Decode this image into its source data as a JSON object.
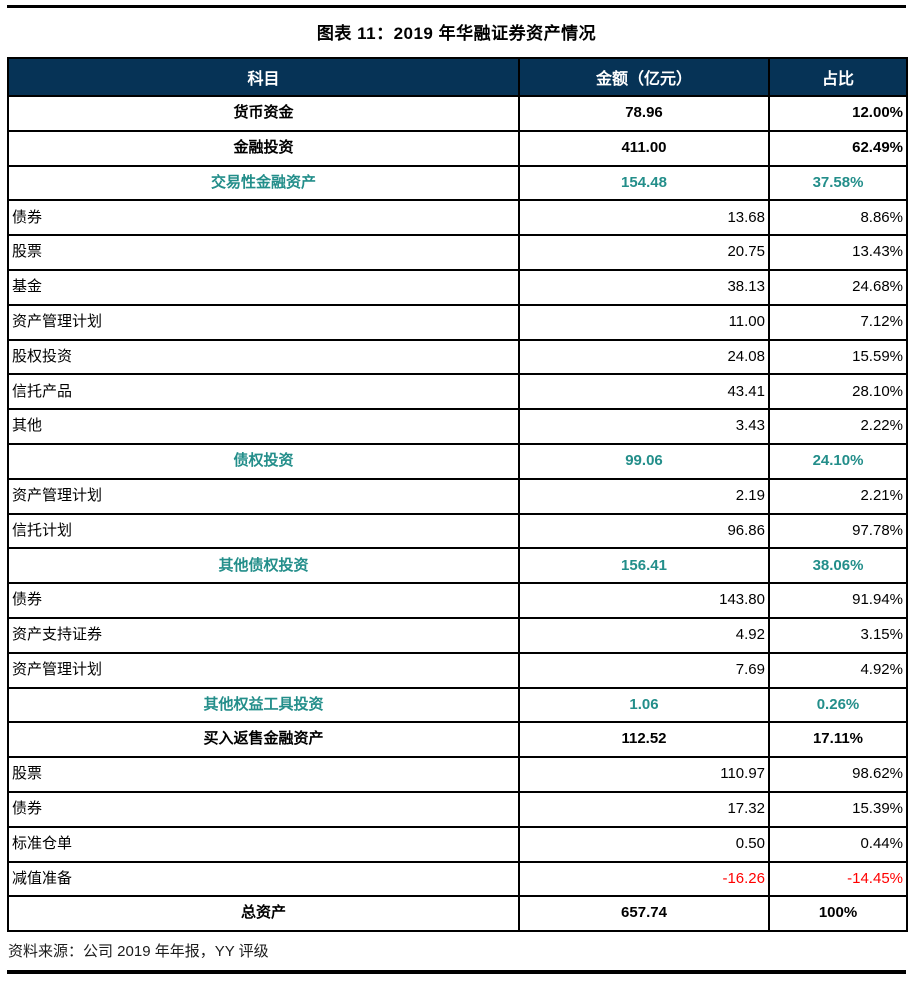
{
  "title": "图表 11：2019 年华融证券资产情况",
  "source": "资料来源：公司 2019 年年报，YY 评级",
  "colors": {
    "header_bg": "#063356",
    "header_text": "#FFFFFF",
    "teal": "#238E8A",
    "negative": "#FF0000",
    "border": "#000000"
  },
  "table": {
    "columns": [
      {
        "label": "科目"
      },
      {
        "label": "金额（亿元）"
      },
      {
        "label": "占比"
      }
    ],
    "rows": [
      {
        "subject": "货币资金",
        "amount": "78.96",
        "ratio": "12.00%",
        "style": "section",
        "amount_align": "center",
        "ratio_align": "right"
      },
      {
        "subject": "金融投资",
        "amount": "411.00",
        "ratio": "62.49%",
        "style": "section",
        "amount_align": "center",
        "ratio_align": "right"
      },
      {
        "subject": "交易性金融资产",
        "amount": "154.48",
        "ratio": "37.58%",
        "style": "section-teal",
        "amount_align": "center",
        "ratio_align": "center"
      },
      {
        "subject": "债券",
        "amount": "13.68",
        "ratio": "8.86%",
        "style": "detail"
      },
      {
        "subject": "股票",
        "amount": "20.75",
        "ratio": "13.43%",
        "style": "detail"
      },
      {
        "subject": "基金",
        "amount": "38.13",
        "ratio": "24.68%",
        "style": "detail"
      },
      {
        "subject": "资产管理计划",
        "amount": "11.00",
        "ratio": "7.12%",
        "style": "detail"
      },
      {
        "subject": "股权投资",
        "amount": "24.08",
        "ratio": "15.59%",
        "style": "detail"
      },
      {
        "subject": "信托产品",
        "amount": "43.41",
        "ratio": "28.10%",
        "style": "detail"
      },
      {
        "subject": "其他",
        "amount": "3.43",
        "ratio": "2.22%",
        "style": "detail"
      },
      {
        "subject": "债权投资",
        "amount": "99.06",
        "ratio": "24.10%",
        "style": "section-teal",
        "amount_align": "center",
        "ratio_align": "center"
      },
      {
        "subject": "资产管理计划",
        "amount": "2.19",
        "ratio": "2.21%",
        "style": "detail"
      },
      {
        "subject": "信托计划",
        "amount": "96.86",
        "ratio": "97.78%",
        "style": "detail"
      },
      {
        "subject": "其他债权投资",
        "amount": "156.41",
        "ratio": "38.06%",
        "style": "section-teal",
        "amount_align": "center",
        "ratio_align": "center"
      },
      {
        "subject": "债券",
        "amount": "143.80",
        "ratio": "91.94%",
        "style": "detail"
      },
      {
        "subject": "资产支持证券",
        "amount": "4.92",
        "ratio": "3.15%",
        "style": "detail"
      },
      {
        "subject": "资产管理计划",
        "amount": "7.69",
        "ratio": "4.92%",
        "style": "detail"
      },
      {
        "subject": "其他权益工具投资",
        "amount": "1.06",
        "ratio": "0.26%",
        "style": "section-teal",
        "amount_align": "center",
        "ratio_align": "center"
      },
      {
        "subject": "买入返售金融资产",
        "amount": "112.52",
        "ratio": "17.11%",
        "style": "section",
        "amount_align": "center",
        "ratio_align": "center"
      },
      {
        "subject": "股票",
        "amount": "110.97",
        "ratio": "98.62%",
        "style": "detail"
      },
      {
        "subject": "债券",
        "amount": "17.32",
        "ratio": "15.39%",
        "style": "detail"
      },
      {
        "subject": "标准仓单",
        "amount": "0.50",
        "ratio": "0.44%",
        "style": "detail"
      },
      {
        "subject": "减值准备",
        "amount": "-16.26",
        "ratio": "-14.45%",
        "style": "detail",
        "negative": true
      },
      {
        "subject": "总资产",
        "amount": "657.74",
        "ratio": "100%",
        "style": "section",
        "amount_align": "center",
        "ratio_align": "center"
      }
    ]
  }
}
